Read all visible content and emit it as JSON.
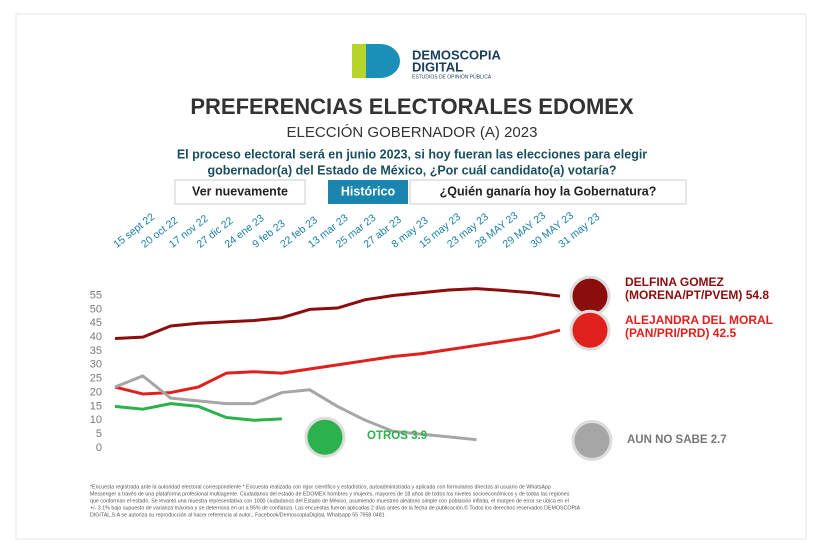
{
  "logo": {
    "name_top": "DEMOSCOPIA",
    "name_bottom": "DIGITAL",
    "tagline": "ESTUDIOS DE OPINIÓN PÚBLICA"
  },
  "chart_data": {
    "type": "line",
    "title": "PREFERENCIAS ELECTORALES EDOMEX",
    "subtitle": "ELECCIÓN GOBERNADOR (A) 2023",
    "question": [
      "El proceso electoral será en junio 2023, si hoy fueran las elecciones para elegir",
      "gobernador(a) del Estado de México, ¿Por cuál candidato(a) votaría?"
    ],
    "categories": [
      "15 sept 22",
      "20 oct 22",
      "17 nov 22",
      "27 dic 22",
      "24 ene 23",
      "9 feb 23",
      "22 feb 23",
      "13 mar 23",
      "25 mar 23",
      "27 abr 23",
      "8 may 23",
      "15 may 23",
      "23 may 23",
      "28 MAY 23",
      "29 MAY 23",
      "30 MAY 23",
      "31 may 23"
    ],
    "series": [
      {
        "name": "DELFINA GOMEZ (MORENA/PT/PVEM)",
        "color": "#8b0d0d",
        "values": [
          39.5,
          40,
          44,
          45,
          45.5,
          46,
          47,
          50,
          50.5,
          53.5,
          55,
          56,
          57,
          57.5,
          56.8,
          56,
          54.8
        ]
      },
      {
        "name": "ALEJANDRA DEL MORAL (PAN/PRI/PRD)",
        "color": "#e0201c",
        "values": [
          22,
          19.5,
          20,
          22,
          27,
          27.5,
          27,
          28.5,
          30,
          31.5,
          33,
          34,
          35.5,
          37,
          38.5,
          40,
          42.5
        ]
      },
      {
        "name": "OTROS",
        "color": "#2bb24c",
        "values": [
          15,
          14,
          16,
          15,
          11,
          10,
          10.5,
          null,
          null,
          null,
          null,
          null,
          null,
          null,
          null,
          null,
          3.9
        ]
      },
      {
        "name": "AUN NO SABE",
        "color": "#a6a6a6",
        "values": [
          22,
          26,
          18,
          17,
          16,
          16,
          20,
          21,
          15,
          10,
          6,
          5,
          4,
          3,
          null,
          null,
          2.7
        ]
      }
    ],
    "ylim": [
      0,
      57
    ],
    "yticks": [
      0,
      5,
      10,
      15,
      20,
      25,
      30,
      35,
      40,
      45,
      50,
      55
    ],
    "grid": false
  },
  "buttons": [
    "Ver nuevamente",
    "Histórico",
    "¿Quién ganaría hoy la Gobernatura?"
  ],
  "footnote": [
    "*Encuesta registrada ante la autoridad electoral correspondiente * Encuesta realizada con rigor científico y estadístico, autoadministrada y aplicada con formularios directos al usuario de WhatsApp",
    "Messenger a través de una plataforma profesional multiagente. Ciudadanos del estado de EDOMEX hombres y mujeres, mayores de 18 años de todos los niveles socioeconómicos y de todas las regiones",
    "que conforman el estado. Se levantó una muestra representativa con 1000 ciudadanos del Estado de México, asumiendo muestreo aleatorio simple con población infinita, el margen de error se ubica en el",
    "+/- 3.1% bajo supuesto de varianza máxima y se determina en un a 95% de confianza. Las encuestas fueron aplicadas 2 días antes de la fecha de publicación.© Todos los derechos reservados DEMOSCOPIA",
    "DIGITAL,S.A se autoriza su reproducción al hacer referencia al autor., Facebook/DemoscopiaDigital, Whatsapp 55 7958 0481"
  ]
}
